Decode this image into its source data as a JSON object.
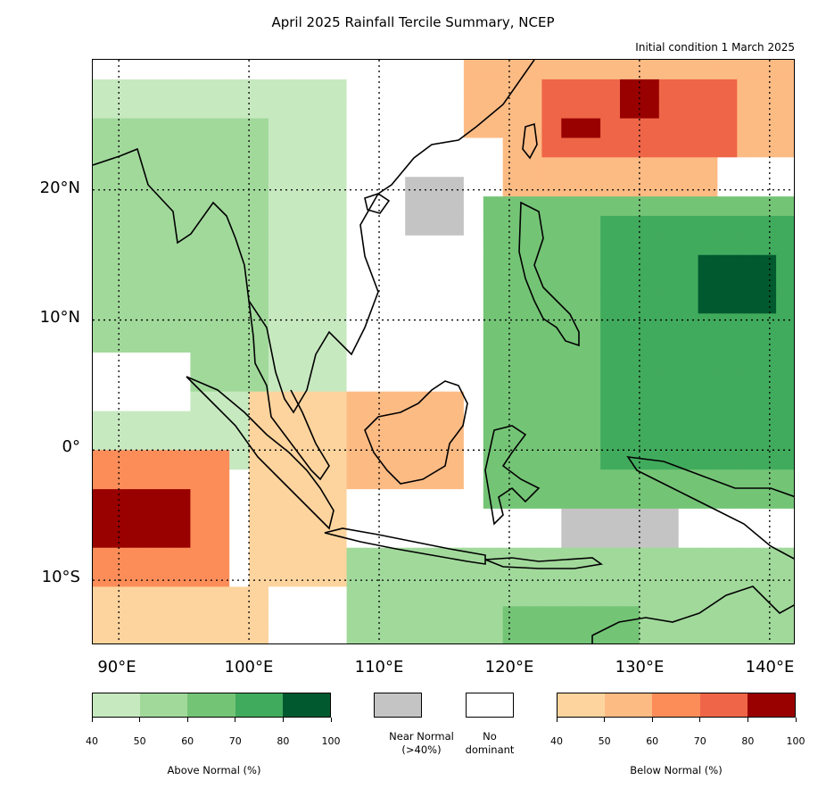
{
  "title": "April 2025 Rainfall Tercile Summary, NCEP",
  "subtitle": "Initial condition 1 March 2025",
  "lat_labels": [
    "20°N",
    "10°N",
    "0°",
    "10°S"
  ],
  "lon_labels": [
    "90°E",
    "100°E",
    "110°E",
    "120°E",
    "130°E",
    "140°E"
  ],
  "legend": {
    "above": {
      "caption": "Above Normal (%)",
      "ticks": [
        "40",
        "50",
        "60",
        "70",
        "80",
        "100"
      ],
      "colors": [
        "#c7e9c0",
        "#a1d99b",
        "#74c476",
        "#41ab5d",
        "#00592f"
      ]
    },
    "near": {
      "caption": "Near Normal (>40%)",
      "line1": "Near Normal",
      "line2": "(>40%)",
      "color": "#c4c4c4"
    },
    "none": {
      "caption": "No dominant",
      "line1": "No",
      "line2": "dominant",
      "color": "#ffffff"
    },
    "below": {
      "caption": "Below Normal (%)",
      "ticks": [
        "40",
        "50",
        "60",
        "70",
        "80",
        "100"
      ],
      "colors": [
        "#fdd49e",
        "#fdbb84",
        "#fc8d59",
        "#ef6548",
        "#990000"
      ]
    }
  },
  "map_data": {
    "lon_range": [
      88,
      142
    ],
    "lat_range": [
      -15,
      30
    ],
    "gridlines_lon": [
      90,
      100,
      110,
      120,
      130,
      140
    ],
    "gridlines_lat": [
      20,
      10,
      0,
      -10
    ],
    "regions": [
      {
        "category": "below",
        "level": 2,
        "lon": [
          116,
          142
        ],
        "lat": [
          20,
          30
        ]
      },
      {
        "category": "below",
        "level": 4,
        "lon": [
          123,
          137
        ],
        "lat": [
          23,
          29
        ]
      },
      {
        "category": "below",
        "level": 5,
        "lon": [
          124,
          127
        ],
        "lat": [
          24,
          25
        ]
      },
      {
        "category": "below",
        "level": 5,
        "lon": [
          129,
          131
        ],
        "lat": [
          26,
          28
        ]
      },
      {
        "category": "none",
        "level": 0,
        "lon": [
          136,
          142
        ],
        "lat": [
          19,
          22
        ]
      },
      {
        "category": "none",
        "level": 0,
        "lon": [
          108,
          119
        ],
        "lat": [
          14,
          24
        ]
      },
      {
        "category": "near",
        "level": 0,
        "lon": [
          112,
          117
        ],
        "lat": [
          17,
          21
        ]
      },
      {
        "category": "above",
        "level": 1,
        "lon": [
          88,
          108
        ],
        "lat": [
          -2,
          29
        ]
      },
      {
        "category": "above",
        "level": 2,
        "lon": [
          88,
          101
        ],
        "lat": [
          5,
          25
        ]
      },
      {
        "category": "above",
        "level": 3,
        "lon": [
          118,
          142
        ],
        "lat": [
          -5,
          20
        ]
      },
      {
        "category": "above",
        "level": 4,
        "lon": [
          127,
          142
        ],
        "lat": [
          -1,
          18
        ]
      },
      {
        "category": "above",
        "level": 5,
        "lon": [
          134,
          141
        ],
        "lat": [
          11,
          15
        ]
      },
      {
        "category": "below",
        "level": 2,
        "lon": [
          108,
          117
        ],
        "lat": [
          -3,
          5
        ]
      },
      {
        "category": "below",
        "level": 1,
        "lon": [
          100,
          108
        ],
        "lat": [
          -10,
          5
        ]
      },
      {
        "category": "below",
        "level": 3,
        "lon": [
          88,
          98
        ],
        "lat": [
          -12,
          0
        ]
      },
      {
        "category": "below",
        "level": 5,
        "lon": [
          88,
          95
        ],
        "lat": [
          -8,
          -3
        ]
      },
      {
        "category": "below",
        "level": 1,
        "lon": [
          88,
          102
        ],
        "lat": [
          -15,
          -11
        ]
      },
      {
        "category": "near",
        "level": 0,
        "lon": [
          124,
          133
        ],
        "lat": [
          -8,
          -4
        ]
      },
      {
        "category": "above",
        "level": 2,
        "lon": [
          108,
          142
        ],
        "lat": [
          -15,
          -8
        ]
      },
      {
        "category": "above",
        "level": 3,
        "lon": [
          120,
          130
        ],
        "lat": [
          -15,
          -12
        ]
      },
      {
        "category": "none",
        "level": 0,
        "lon": [
          88,
          96
        ],
        "lat": [
          3,
          7
        ]
      }
    ]
  }
}
